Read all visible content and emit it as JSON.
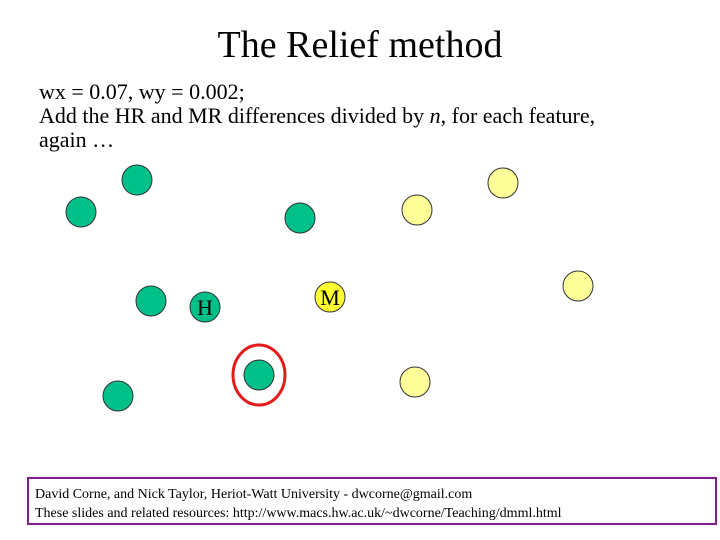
{
  "slide": {
    "title": "The Relief method",
    "body_lines": [
      "wx = 0.07, wy = 0.002;",
      "Add the HR and MR differences divided by n, for each feature,",
      "again …"
    ],
    "body_line2_parts": {
      "before": "Add the HR and MR differences divided by ",
      "italic": "n",
      "after": ", for each feature,"
    }
  },
  "diagram": {
    "colors": {
      "class_a_fill": "#00c08a",
      "class_b_fill": "#ffff99",
      "miss_fill": "#ffff33",
      "highlight_ring": "#e31b1b",
      "outline": "#333333"
    },
    "labels": {
      "near_hit": "H",
      "near_miss": "M"
    }
  },
  "footer": {
    "line1": "David Corne, and Nick Taylor,  Heriot-Watt University  -  dwcorne@gmail.com",
    "line2": "These slides and related resources:   http://www.macs.hw.ac.uk/~dwcorne/Teaching/dmml.html"
  }
}
